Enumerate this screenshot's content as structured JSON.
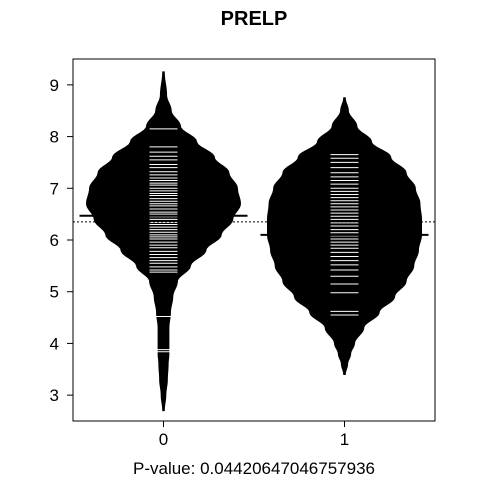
{
  "chart_data": {
    "type": "beanplot",
    "title": "PRELP",
    "xlabel": "P-value: 0.04420647046757936",
    "ylabel": "",
    "ylim": [
      2.5,
      9.5
    ],
    "yticks": [
      3,
      4,
      5,
      6,
      7,
      8,
      9
    ],
    "categories": [
      "0",
      "1"
    ],
    "overall_mean": 6.35,
    "grid": false,
    "legend": "none",
    "series": [
      {
        "category": "0",
        "mean": 6.47,
        "density": [
          [
            2.7,
            0.01
          ],
          [
            3.0,
            0.03
          ],
          [
            3.3,
            0.05
          ],
          [
            3.6,
            0.06
          ],
          [
            3.8,
            0.07
          ],
          [
            4.0,
            0.07
          ],
          [
            4.3,
            0.07
          ],
          [
            4.6,
            0.09
          ],
          [
            4.9,
            0.12
          ],
          [
            5.2,
            0.18
          ],
          [
            5.5,
            0.35
          ],
          [
            5.8,
            0.55
          ],
          [
            6.1,
            0.75
          ],
          [
            6.4,
            0.9
          ],
          [
            6.7,
            1.0
          ],
          [
            7.0,
            0.96
          ],
          [
            7.3,
            0.85
          ],
          [
            7.6,
            0.66
          ],
          [
            7.9,
            0.43
          ],
          [
            8.2,
            0.22
          ],
          [
            8.5,
            0.1
          ],
          [
            8.8,
            0.04
          ],
          [
            9.25,
            0.01
          ]
        ],
        "observations": [
          3.84,
          3.88,
          4.52,
          5.38,
          5.42,
          5.48,
          5.55,
          5.6,
          5.66,
          5.72,
          5.78,
          5.85,
          5.9,
          5.96,
          6.02,
          6.06,
          6.1,
          6.15,
          6.2,
          6.25,
          6.3,
          6.34,
          6.4,
          6.45,
          6.5,
          6.54,
          6.6,
          6.66,
          6.7,
          6.75,
          6.8,
          6.86,
          6.9,
          6.95,
          7.0,
          7.06,
          7.1,
          7.15,
          7.2,
          7.26,
          7.32,
          7.4,
          7.46,
          7.55,
          7.62,
          7.7,
          7.8,
          8.15
        ]
      },
      {
        "category": "1",
        "mean": 6.1,
        "density": [
          [
            3.4,
            0.01
          ],
          [
            3.6,
            0.04
          ],
          [
            3.8,
            0.08
          ],
          [
            4.0,
            0.13
          ],
          [
            4.3,
            0.25
          ],
          [
            4.6,
            0.45
          ],
          [
            4.9,
            0.65
          ],
          [
            5.2,
            0.8
          ],
          [
            5.5,
            0.9
          ],
          [
            5.8,
            0.96
          ],
          [
            6.1,
            1.0
          ],
          [
            6.4,
            1.0
          ],
          [
            6.7,
            0.98
          ],
          [
            7.0,
            0.92
          ],
          [
            7.3,
            0.8
          ],
          [
            7.6,
            0.6
          ],
          [
            7.9,
            0.35
          ],
          [
            8.2,
            0.16
          ],
          [
            8.5,
            0.05
          ],
          [
            8.75,
            0.01
          ]
        ],
        "observations": [
          4.55,
          4.62,
          4.98,
          5.15,
          5.3,
          5.42,
          5.52,
          5.6,
          5.68,
          5.76,
          5.84,
          5.9,
          5.96,
          6.02,
          6.08,
          6.14,
          6.2,
          6.27,
          6.33,
          6.4,
          6.46,
          6.52,
          6.58,
          6.64,
          6.7,
          6.76,
          6.82,
          6.88,
          6.94,
          7.0,
          7.08,
          7.15,
          7.22,
          7.3,
          7.4,
          7.5,
          7.58,
          7.65
        ]
      }
    ]
  }
}
